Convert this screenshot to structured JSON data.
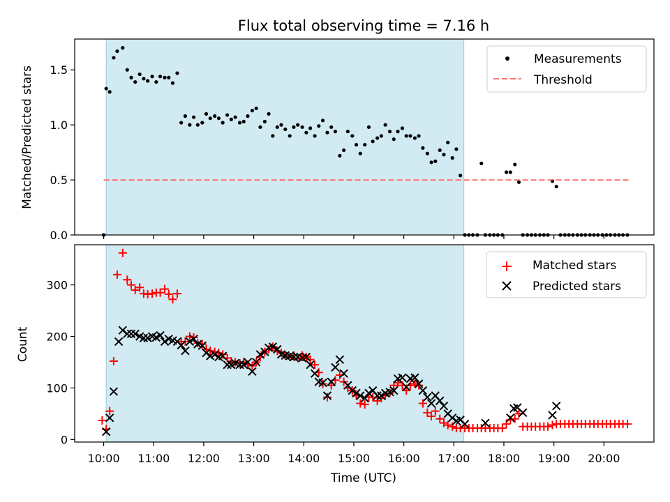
{
  "chart_data": [
    {
      "type": "scatter",
      "title": "Flux total observing time = 7.16 h",
      "xlabel": "",
      "ylabel": "Matched/Predicted stars",
      "xlim": [
        9.42,
        21.0
      ],
      "ylim": [
        0.0,
        1.78
      ],
      "yticks": [
        0.0,
        0.5,
        1.0,
        1.5
      ],
      "ytick_labels": [
        "0.0",
        "0.5",
        "1.0",
        "1.5"
      ],
      "xticks": [
        10,
        11,
        12,
        13,
        14,
        15,
        16,
        17,
        18,
        19,
        20
      ],
      "shaded_span": [
        10.05,
        17.2
      ],
      "legend_position": "top-right",
      "series": [
        {
          "name": "Measurements",
          "marker": "dot",
          "color": "#000000",
          "x": [
            10.0,
            10.05,
            10.12,
            10.2,
            10.27,
            10.38,
            10.47,
            10.55,
            10.63,
            10.72,
            10.8,
            10.88,
            10.97,
            11.05,
            11.13,
            11.22,
            11.3,
            11.38,
            11.47,
            11.55,
            11.63,
            11.72,
            11.8,
            11.88,
            11.97,
            12.05,
            12.13,
            12.22,
            12.3,
            12.38,
            12.47,
            12.55,
            12.63,
            12.72,
            12.8,
            12.88,
            12.97,
            13.05,
            13.13,
            13.22,
            13.3,
            13.38,
            13.47,
            13.55,
            13.63,
            13.72,
            13.8,
            13.88,
            13.97,
            14.05,
            14.13,
            14.22,
            14.3,
            14.38,
            14.47,
            14.55,
            14.63,
            14.72,
            14.8,
            14.88,
            14.97,
            15.05,
            15.13,
            15.22,
            15.3,
            15.38,
            15.47,
            15.55,
            15.63,
            15.72,
            15.8,
            15.88,
            15.97,
            16.05,
            16.13,
            16.22,
            16.3,
            16.38,
            16.47,
            16.55,
            16.63,
            16.72,
            16.8,
            16.88,
            16.97,
            17.05,
            17.13,
            17.22,
            17.3,
            17.38,
            17.47,
            17.55,
            17.63,
            17.72,
            17.8,
            17.88,
            17.97,
            18.05,
            18.13,
            18.22,
            18.3,
            18.38,
            18.47,
            18.55,
            18.63,
            18.72,
            18.8,
            18.88,
            18.97,
            19.05,
            19.13,
            19.22,
            19.3,
            19.38,
            19.47,
            19.55,
            19.63,
            19.72,
            19.8,
            19.88,
            19.97,
            20.05,
            20.13,
            20.22,
            20.3,
            20.38,
            20.47
          ],
          "y": [
            0.0,
            1.33,
            1.3,
            1.61,
            1.67,
            1.7,
            1.5,
            1.43,
            1.39,
            1.46,
            1.42,
            1.4,
            1.44,
            1.39,
            1.44,
            1.43,
            1.43,
            1.38,
            1.47,
            1.02,
            1.08,
            1.0,
            1.07,
            1.0,
            1.02,
            1.1,
            1.06,
            1.08,
            1.06,
            1.02,
            1.09,
            1.05,
            1.07,
            1.02,
            1.03,
            1.08,
            1.13,
            1.15,
            0.98,
            1.03,
            1.1,
            0.9,
            0.98,
            1.0,
            0.96,
            0.9,
            0.98,
            1.0,
            0.98,
            0.93,
            0.97,
            0.9,
            0.99,
            1.04,
            0.93,
            0.98,
            0.94,
            0.72,
            0.77,
            0.94,
            0.9,
            0.82,
            0.74,
            0.82,
            0.98,
            0.85,
            0.88,
            0.9,
            1.0,
            0.94,
            0.87,
            0.94,
            0.97,
            0.9,
            0.9,
            0.88,
            0.9,
            0.79,
            0.74,
            0.66,
            0.67,
            0.77,
            0.73,
            0.84,
            0.7,
            0.78,
            0.54,
            0.0,
            0.0,
            0.0,
            0.0,
            0.65,
            0.0,
            0.0,
            0.0,
            0.0,
            0.0,
            0.57,
            0.57,
            0.64,
            0.48,
            0.0,
            0.0,
            0.0,
            0.0,
            0.0,
            0.0,
            0.0,
            0.49,
            0.44,
            0.0,
            0.0,
            0.0,
            0.0,
            0.0,
            0.0,
            0.0,
            0.0,
            0.0,
            0.0,
            0.0,
            0.0,
            0.0,
            0.0,
            0.0,
            0.0,
            0.0
          ]
        },
        {
          "name": "Threshold",
          "marker": "dashed-line",
          "color": "#ff6666",
          "x": [
            10.0,
            20.5
          ],
          "y": [
            0.5,
            0.5
          ]
        }
      ]
    },
    {
      "type": "scatter",
      "title": "",
      "xlabel": "Time (UTC)",
      "ylabel": "Count",
      "xlim": [
        9.42,
        21.0
      ],
      "ylim": [
        -5,
        378
      ],
      "yticks": [
        0,
        100,
        200,
        300
      ],
      "ytick_labels": [
        "0",
        "100",
        "200",
        "300"
      ],
      "xticks": [
        10,
        11,
        12,
        13,
        14,
        15,
        16,
        17,
        18,
        19,
        20
      ],
      "xtick_labels": [
        "10:00",
        "11:00",
        "12:00",
        "13:00",
        "14:00",
        "15:00",
        "16:00",
        "17:00",
        "18:00",
        "19:00",
        "20:00"
      ],
      "shaded_span": [
        10.05,
        17.2
      ],
      "legend_position": "top-right",
      "series": [
        {
          "name": "Matched stars",
          "marker": "plus",
          "color": "#ff0000",
          "x": [
            9.97,
            10.05,
            10.12,
            10.2,
            10.27,
            10.38,
            10.47,
            10.55,
            10.63,
            10.72,
            10.8,
            10.88,
            10.97,
            11.05,
            11.13,
            11.22,
            11.3,
            11.38,
            11.47,
            11.55,
            11.63,
            11.72,
            11.8,
            11.88,
            11.97,
            12.05,
            12.13,
            12.22,
            12.3,
            12.38,
            12.47,
            12.55,
            12.63,
            12.72,
            12.8,
            12.88,
            12.97,
            13.05,
            13.13,
            13.22,
            13.3,
            13.38,
            13.47,
            13.55,
            13.63,
            13.72,
            13.8,
            13.88,
            13.97,
            14.05,
            14.13,
            14.22,
            14.3,
            14.38,
            14.47,
            14.55,
            14.63,
            14.72,
            14.8,
            14.88,
            14.97,
            15.05,
            15.13,
            15.22,
            15.3,
            15.38,
            15.47,
            15.55,
            15.63,
            15.72,
            15.8,
            15.88,
            15.97,
            16.05,
            16.13,
            16.22,
            16.3,
            16.38,
            16.47,
            16.55,
            16.63,
            16.72,
            16.8,
            16.88,
            16.97,
            17.05,
            17.13,
            17.22,
            17.3,
            17.38,
            17.47,
            17.55,
            17.63,
            17.72,
            17.8,
            17.88,
            17.97,
            18.05,
            18.13,
            18.22,
            18.3,
            18.38,
            18.47,
            18.55,
            18.63,
            18.72,
            18.8,
            18.88,
            18.97,
            19.05,
            19.13,
            19.22,
            19.3,
            19.38,
            19.47,
            19.55,
            19.63,
            19.72,
            19.8,
            19.88,
            19.97,
            20.05,
            20.13,
            20.22,
            20.3,
            20.38,
            20.47
          ],
          "y": [
            37,
            20,
            55,
            152,
            320,
            362,
            310,
            300,
            290,
            295,
            283,
            282,
            283,
            285,
            285,
            292,
            282,
            272,
            283,
            190,
            190,
            200,
            198,
            187,
            185,
            175,
            172,
            170,
            168,
            165,
            158,
            152,
            150,
            148,
            150,
            145,
            143,
            150,
            160,
            170,
            175,
            180,
            172,
            168,
            163,
            160,
            163,
            158,
            163,
            160,
            155,
            145,
            130,
            108,
            82,
            105,
            115,
            125,
            112,
            100,
            95,
            85,
            70,
            68,
            82,
            82,
            75,
            80,
            85,
            90,
            105,
            110,
            105,
            95,
            105,
            108,
            105,
            70,
            52,
            45,
            55,
            40,
            32,
            28,
            25,
            22,
            22,
            22,
            22,
            22,
            22,
            22,
            22,
            22,
            22,
            22,
            22,
            30,
            38,
            40,
            50,
            25,
            25,
            25,
            25,
            25,
            25,
            25,
            28,
            30,
            30,
            30,
            30,
            30,
            30,
            30,
            30,
            30,
            30,
            30,
            30,
            30,
            30,
            30,
            30,
            30,
            30
          ]
        },
        {
          "name": "Predicted stars",
          "marker": "x",
          "color": "#000000",
          "x": [
            10.05,
            10.12,
            10.2,
            10.3,
            10.38,
            10.47,
            10.55,
            10.63,
            10.72,
            10.8,
            10.88,
            10.97,
            11.05,
            11.13,
            11.22,
            11.3,
            11.38,
            11.47,
            11.55,
            11.63,
            11.72,
            11.8,
            11.88,
            11.97,
            12.05,
            12.13,
            12.22,
            12.3,
            12.38,
            12.47,
            12.55,
            12.63,
            12.72,
            12.8,
            12.88,
            12.97,
            13.05,
            13.13,
            13.22,
            13.3,
            13.38,
            13.47,
            13.55,
            13.63,
            13.72,
            13.8,
            13.88,
            13.97,
            14.05,
            14.13,
            14.22,
            14.3,
            14.38,
            14.47,
            14.55,
            14.63,
            14.72,
            14.8,
            14.88,
            14.97,
            15.05,
            15.13,
            15.22,
            15.3,
            15.38,
            15.47,
            15.55,
            15.63,
            15.72,
            15.8,
            15.88,
            15.97,
            16.05,
            16.13,
            16.22,
            16.3,
            16.38,
            16.47,
            16.55,
            16.63,
            16.72,
            16.8,
            16.88,
            16.97,
            17.05,
            17.13,
            17.22,
            17.63,
            18.13,
            18.2,
            18.27,
            18.38,
            18.97,
            19.05
          ],
          "y": [
            15,
            42,
            93,
            190,
            212,
            205,
            205,
            205,
            200,
            197,
            197,
            200,
            198,
            202,
            190,
            195,
            192,
            190,
            183,
            172,
            190,
            195,
            185,
            182,
            168,
            162,
            165,
            160,
            162,
            145,
            145,
            148,
            145,
            145,
            150,
            132,
            150,
            165,
            170,
            178,
            180,
            175,
            165,
            163,
            162,
            160,
            160,
            158,
            160,
            145,
            128,
            112,
            110,
            85,
            112,
            140,
            155,
            128,
            105,
            95,
            90,
            85,
            80,
            90,
            95,
            85,
            85,
            90,
            92,
            95,
            118,
            120,
            102,
            118,
            120,
            108,
            95,
            82,
            70,
            85,
            75,
            65,
            50,
            42,
            36,
            38,
            30,
            32,
            42,
            60,
            62,
            52,
            47,
            65
          ]
        }
      ]
    }
  ],
  "legend": {
    "top": [
      "Measurements",
      "Threshold"
    ],
    "bottom": [
      "Matched stars",
      "Predicted stars"
    ]
  }
}
